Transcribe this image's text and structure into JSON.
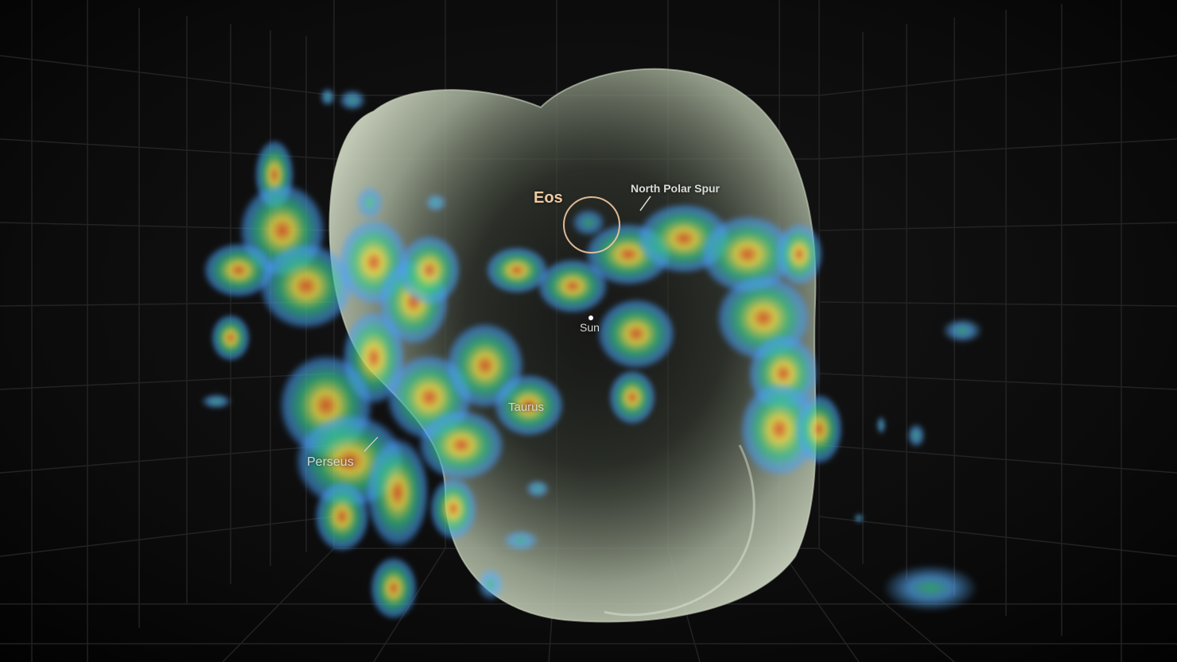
{
  "labels": {
    "eos": "Eos",
    "north_polar_spur": "North Polar Spur",
    "sun": "Sun",
    "taurus": "Taurus",
    "perseus": "Perseus"
  },
  "colors": {
    "background": "#050505",
    "grid_line": "#2a2a2a",
    "bubble": "#b9c3ad",
    "eos_ring": "#f1c9a1",
    "cloud_outer": "#5aa9ff",
    "cloud_mid": "#3ad38a",
    "cloud_inner": "#e0d84a",
    "cloud_core": "#e06a2e"
  }
}
